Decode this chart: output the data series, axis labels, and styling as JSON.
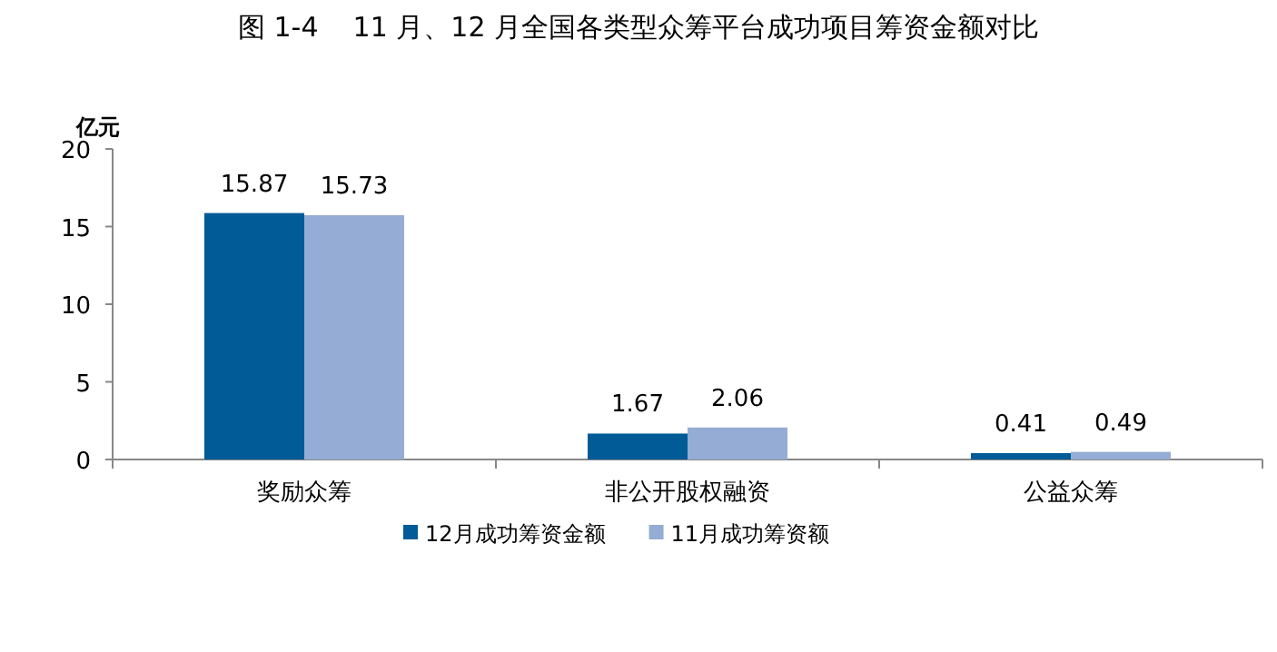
{
  "chart_data": {
    "type": "bar",
    "title": "图 1-4    11 月、12 月全国各类型众筹平台成功项目筹资金额对比",
    "ylabel": "亿元",
    "categories": [
      "奖励众筹",
      "非公开股权融资",
      "公益众筹"
    ],
    "series": [
      {
        "name": "12月成功筹资金额",
        "color": "#005b96",
        "values": [
          15.87,
          1.67,
          0.41
        ]
      },
      {
        "name": "11月成功筹资额",
        "color": "#95acd4",
        "values": [
          15.73,
          2.06,
          0.49
        ]
      }
    ],
    "ylim": [
      0,
      20
    ],
    "yticks": [
      0,
      5,
      10,
      15,
      20
    ],
    "data_labels": true,
    "grid": false,
    "legend": "bottom"
  }
}
